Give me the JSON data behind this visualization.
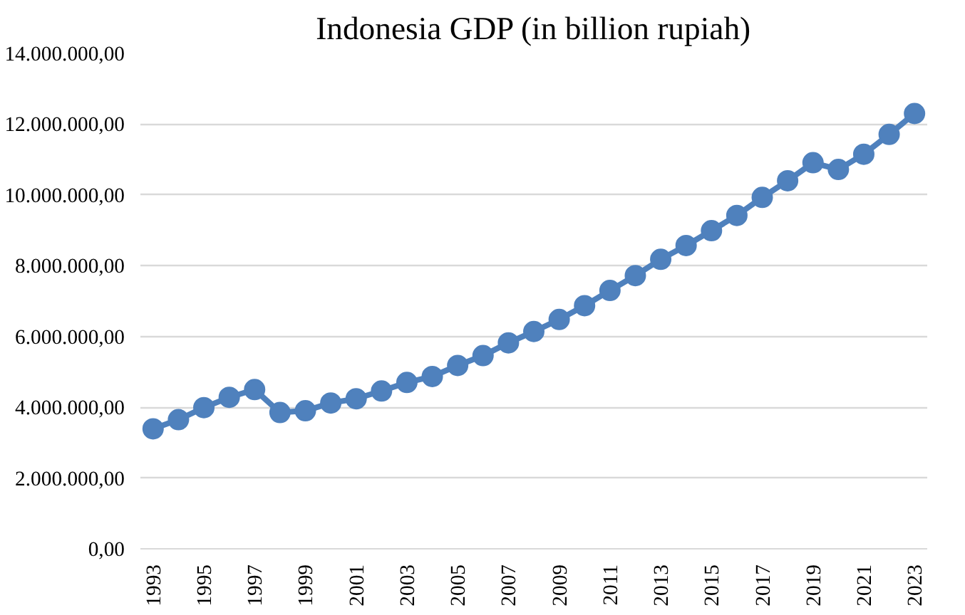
{
  "chart_data": {
    "type": "line",
    "title": "Indonesia GDP (in billion rupiah)",
    "x": [
      1993,
      1994,
      1995,
      1996,
      1997,
      1998,
      1999,
      2000,
      2001,
      2002,
      2003,
      2004,
      2005,
      2006,
      2007,
      2008,
      2009,
      2010,
      2011,
      2012,
      2013,
      2014,
      2015,
      2016,
      2017,
      2018,
      2019,
      2020,
      2021,
      2022,
      2023
    ],
    "series": [
      {
        "color": "#4f81bd",
        "values": [
          3390000,
          3650000,
          3990000,
          4280000,
          4500000,
          3850000,
          3900000,
          4120000,
          4240000,
          4460000,
          4700000,
          4870000,
          5180000,
          5460000,
          5820000,
          6140000,
          6480000,
          6870000,
          7300000,
          7720000,
          8180000,
          8570000,
          8990000,
          9420000,
          9930000,
          10400000,
          10910000,
          10720000,
          11150000,
          11710000,
          12300000
        ]
      }
    ],
    "xlim": [
      1992.5,
      2023.5
    ],
    "xticks": [
      1993,
      1995,
      1997,
      1999,
      2001,
      2003,
      2005,
      2007,
      2009,
      2011,
      2013,
      2015,
      2017,
      2019,
      2021,
      2023
    ],
    "ylim": [
      0,
      14000000
    ],
    "yticks": [
      {
        "value": 0,
        "label": "0,00"
      },
      {
        "value": 2000000,
        "label": "2.000.000,00"
      },
      {
        "value": 4000000,
        "label": "4.000.000,00"
      },
      {
        "value": 6000000,
        "label": "6.000.000,00"
      },
      {
        "value": 8000000,
        "label": "8.000.000,00"
      },
      {
        "value": 10000000,
        "label": "10.000.000,00"
      },
      {
        "value": 12000000,
        "label": "12.000.000,00"
      },
      {
        "value": 14000000,
        "label": "14.000.000,00"
      }
    ],
    "grid": "y",
    "marker": "circle",
    "line_style": "solid"
  }
}
